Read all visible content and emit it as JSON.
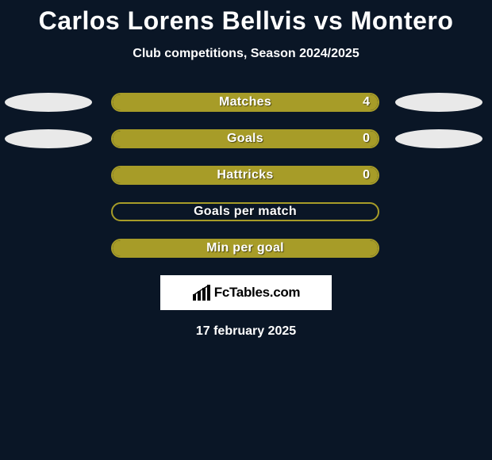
{
  "background_color": "#0a1626",
  "title": {
    "text": "Carlos Lorens Bellvis vs Montero",
    "color": "#ffffff",
    "fontsize": 32,
    "fontweight": 900
  },
  "subtitle": {
    "text": "Club competitions, Season 2024/2025",
    "color": "#ffffff",
    "fontsize": 16,
    "fontweight": 700
  },
  "player_colors": {
    "left": "#e9e9e9",
    "right": "#e9e9e9"
  },
  "bar_style": {
    "border_color": "#a79c28",
    "fill_color": "#a79c28",
    "inactive_fill": "transparent",
    "border_radius": 12,
    "height": 24,
    "label_color": "#ffffff",
    "label_fontsize": 16,
    "label_fontweight": 800,
    "text_shadow": "1px 1px 1px rgba(0,0,0,0.55)"
  },
  "rows": [
    {
      "label": "Matches",
      "value": "4",
      "fill_pct": 100,
      "show_value": true,
      "show_left_ellipse": true,
      "show_right_ellipse": true
    },
    {
      "label": "Goals",
      "value": "0",
      "fill_pct": 100,
      "show_value": true,
      "show_left_ellipse": true,
      "show_right_ellipse": true
    },
    {
      "label": "Hattricks",
      "value": "0",
      "fill_pct": 100,
      "show_value": true,
      "show_left_ellipse": false,
      "show_right_ellipse": false
    },
    {
      "label": "Goals per match",
      "value": "",
      "fill_pct": 0,
      "show_value": false,
      "show_left_ellipse": false,
      "show_right_ellipse": false
    },
    {
      "label": "Min per goal",
      "value": "",
      "fill_pct": 100,
      "show_value": false,
      "show_left_ellipse": false,
      "show_right_ellipse": false
    }
  ],
  "brand": {
    "text": "FcTables.com",
    "background": "#ffffff",
    "text_color": "#000000",
    "fontsize": 17,
    "fontweight": 900,
    "icon_color": "#000000"
  },
  "date": {
    "text": "17 february 2025",
    "color": "#ffffff",
    "fontsize": 16,
    "fontweight": 700
  }
}
